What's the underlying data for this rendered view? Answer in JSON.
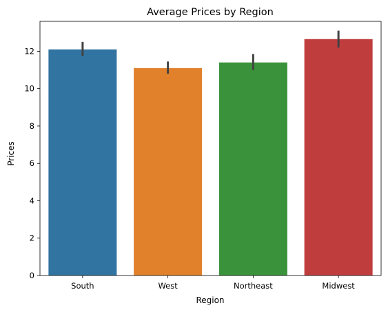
{
  "chart_data": {
    "type": "bar",
    "title": "Average Prices by Region",
    "xlabel": "Region",
    "ylabel": "Prices",
    "categories": [
      "South",
      "West",
      "Northeast",
      "Midwest"
    ],
    "values": [
      12.1,
      11.1,
      11.4,
      12.65
    ],
    "error_low": [
      11.75,
      10.8,
      11.0,
      12.2
    ],
    "error_high": [
      12.5,
      11.45,
      11.85,
      13.1
    ],
    "colors": [
      "#3274a1",
      "#e1812c",
      "#3a923a",
      "#c03d3e"
    ],
    "errorbar_color": "#424242",
    "ylim": [
      0,
      13.6
    ],
    "yticks": [
      0,
      2,
      4,
      6,
      8,
      10,
      12
    ],
    "grid": false,
    "legend": "none"
  }
}
